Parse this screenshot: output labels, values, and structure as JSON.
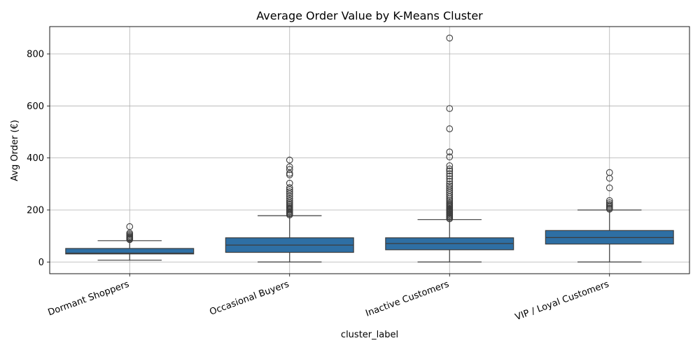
{
  "chart_data": {
    "type": "box",
    "title": "Average Order Value by K-Means Cluster",
    "xlabel": "cluster_label",
    "ylabel": "Avg Order (€)",
    "ylim": [
      -45,
      905
    ],
    "yticks": [
      0,
      200,
      400,
      600,
      800
    ],
    "grid": true,
    "box_color": "#2e6fa4",
    "line_color": "#3d3d3d",
    "grid_color": "#b0b0b0",
    "categories": [
      "Dormant Shoppers",
      "Occasional Buyers",
      "Inactive Customers",
      "VIP / Loyal Customers"
    ],
    "boxes": [
      {
        "whisker_low": 7,
        "q1": 31,
        "median": 34,
        "q3": 52,
        "whisker_high": 82,
        "outliers": [
          86,
          89,
          91,
          94,
          97,
          101,
          106,
          111,
          136
        ]
      },
      {
        "whisker_low": 0,
        "q1": 37,
        "median": 65,
        "q3": 93,
        "whisker_high": 178,
        "outliers": [
          181,
          185,
          189,
          193,
          197,
          201,
          205,
          209,
          214,
          219,
          224,
          229,
          236,
          244,
          253,
          262,
          270,
          278,
          286,
          303,
          335,
          341,
          356,
          366,
          392
        ]
      },
      {
        "whisker_low": 0,
        "q1": 47,
        "median": 71,
        "q3": 93,
        "whisker_high": 163,
        "outliers": [
          166,
          170,
          174,
          178,
          182,
          186,
          190,
          194,
          198,
          202,
          206,
          210,
          214,
          218,
          222,
          226,
          232,
          238,
          245,
          252,
          260,
          268,
          276,
          284,
          292,
          300,
          310,
          320,
          330,
          340,
          350,
          358,
          370,
          404,
          423,
          512,
          590,
          861
        ]
      },
      {
        "whisker_low": 0,
        "q1": 69,
        "median": 94,
        "q3": 121,
        "whisker_high": 200,
        "outliers": [
          203,
          207,
          212,
          217,
          222,
          228,
          236,
          285,
          322,
          344
        ]
      }
    ]
  }
}
